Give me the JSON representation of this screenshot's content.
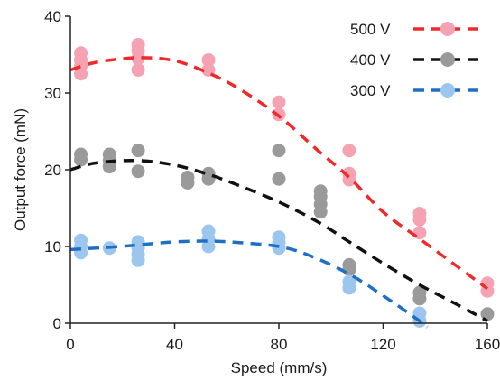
{
  "chart_data": {
    "type": "scatter",
    "xlabel": "Speed (mm/s)",
    "ylabel": "Output force (mN)",
    "xlim": [
      0,
      160
    ],
    "ylim": [
      0,
      40
    ],
    "xticks": [
      0,
      40,
      80,
      120,
      160
    ],
    "yticks": [
      0,
      10,
      20,
      30,
      40
    ],
    "grid": false,
    "legend_position": "top-right",
    "series": [
      {
        "name": "500 V",
        "color": "#ee2a2a",
        "marker_color": "#f5a3b2",
        "points": [
          [
            4,
            32.5
          ],
          [
            4,
            33.5
          ],
          [
            4,
            34.3
          ],
          [
            4,
            35.2
          ],
          [
            26,
            33.0
          ],
          [
            26,
            34.5
          ],
          [
            26,
            35.5
          ],
          [
            26,
            36.3
          ],
          [
            53,
            33.0
          ],
          [
            53,
            34.3
          ],
          [
            80,
            27.2
          ],
          [
            80,
            28.8
          ],
          [
            107,
            18.7
          ],
          [
            107,
            19.5
          ],
          [
            107,
            22.5
          ],
          [
            134,
            11.8
          ],
          [
            134,
            13.5
          ],
          [
            134,
            14.3
          ],
          [
            160,
            4.2
          ],
          [
            160,
            5.2
          ]
        ],
        "fit": [
          [
            0,
            33.0
          ],
          [
            10,
            34.0
          ],
          [
            26,
            34.6
          ],
          [
            40,
            34.2
          ],
          [
            53,
            32.6
          ],
          [
            65,
            30.5
          ],
          [
            80,
            27.0
          ],
          [
            95,
            22.5
          ],
          [
            107,
            19.0
          ],
          [
            120,
            14.5
          ],
          [
            134,
            11.0
          ],
          [
            148,
            7.5
          ],
          [
            160,
            4.5
          ]
        ]
      },
      {
        "name": "400 V",
        "color": "#111111",
        "marker_color": "#9a9a9a",
        "points": [
          [
            4,
            21.3
          ],
          [
            4,
            22.0
          ],
          [
            15,
            20.4
          ],
          [
            15,
            21.2
          ],
          [
            15,
            22.0
          ],
          [
            26,
            19.8
          ],
          [
            26,
            22.5
          ],
          [
            45,
            18.3
          ],
          [
            45,
            19.0
          ],
          [
            53,
            18.8
          ],
          [
            53,
            19.5
          ],
          [
            80,
            18.8
          ],
          [
            80,
            22.5
          ],
          [
            96,
            14.5
          ],
          [
            96,
            15.5
          ],
          [
            96,
            16.5
          ],
          [
            96,
            17.2
          ],
          [
            107,
            7.0
          ],
          [
            107,
            7.6
          ],
          [
            134,
            3.2
          ],
          [
            134,
            4.0
          ],
          [
            160,
            1.2
          ]
        ],
        "fit": [
          [
            0,
            20.0
          ],
          [
            10,
            20.9
          ],
          [
            26,
            21.2
          ],
          [
            40,
            20.6
          ],
          [
            53,
            19.4
          ],
          [
            65,
            17.9
          ],
          [
            80,
            15.8
          ],
          [
            95,
            13.2
          ],
          [
            107,
            10.6
          ],
          [
            120,
            7.8
          ],
          [
            134,
            5.0
          ],
          [
            148,
            2.5
          ],
          [
            160,
            0.3
          ]
        ]
      },
      {
        "name": "300 V",
        "color": "#1f6fc5",
        "marker_color": "#9cc6ee",
        "points": [
          [
            4,
            9.2
          ],
          [
            4,
            10.0
          ],
          [
            4,
            10.8
          ],
          [
            15,
            9.8
          ],
          [
            26,
            8.2
          ],
          [
            26,
            9.0
          ],
          [
            26,
            9.8
          ],
          [
            26,
            10.6
          ],
          [
            53,
            10.0
          ],
          [
            53,
            11.0
          ],
          [
            53,
            12.0
          ],
          [
            80,
            9.8
          ],
          [
            80,
            10.5
          ],
          [
            80,
            11.2
          ],
          [
            107,
            4.6
          ],
          [
            107,
            5.4
          ],
          [
            134,
            0.3
          ],
          [
            134,
            1.3
          ]
        ],
        "fit": [
          [
            0,
            9.6
          ],
          [
            15,
            9.9
          ],
          [
            26,
            10.2
          ],
          [
            40,
            10.6
          ],
          [
            53,
            10.7
          ],
          [
            65,
            10.5
          ],
          [
            80,
            10.0
          ],
          [
            92,
            8.8
          ],
          [
            107,
            6.4
          ],
          [
            120,
            3.6
          ],
          [
            134,
            0.3
          ],
          [
            137,
            -0.5
          ]
        ]
      }
    ]
  }
}
